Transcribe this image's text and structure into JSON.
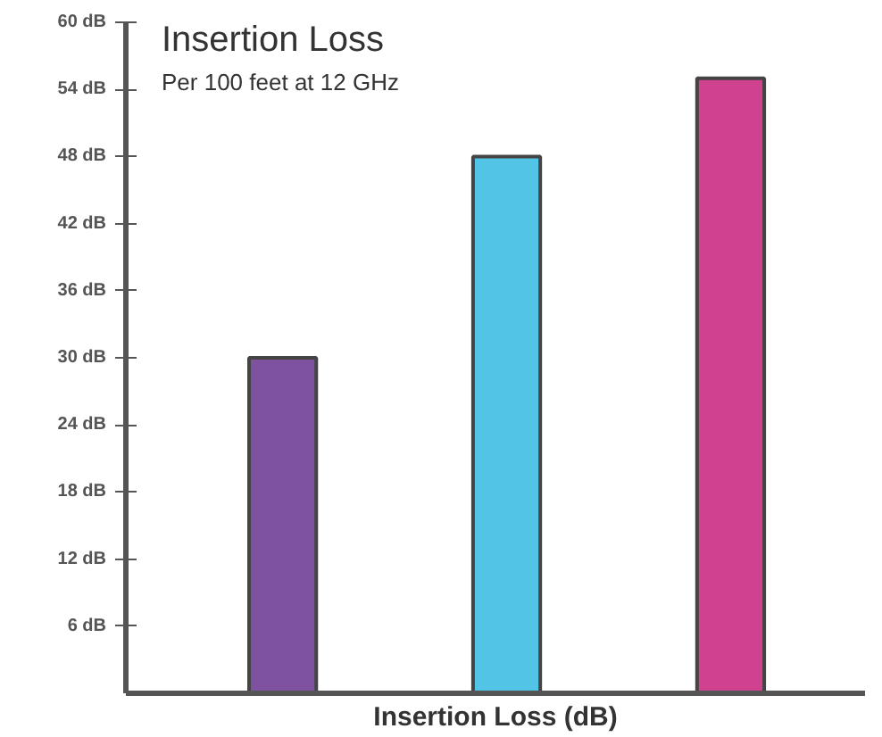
{
  "chart_data": {
    "type": "bar",
    "title": "Insertion Loss",
    "subtitle": "Per 100 feet at 12 GHz",
    "xlabel": "Insertion Loss (dB)",
    "categories": [
      null,
      null,
      null
    ],
    "values": [
      30,
      48,
      55
    ],
    "colors": [
      "#7f52a0",
      "#52c4e6",
      "#d0428f"
    ],
    "ylim": [
      0,
      60
    ],
    "yticks": [
      {
        "value": 6,
        "label": "6 dB"
      },
      {
        "value": 12,
        "label": "12 dB"
      },
      {
        "value": 18,
        "label": "18 dB"
      },
      {
        "value": 24,
        "label": "24 dB"
      },
      {
        "value": 30,
        "label": "30 dB"
      },
      {
        "value": 36,
        "label": "36 dB"
      },
      {
        "value": 42,
        "label": "42 dB"
      },
      {
        "value": 48,
        "label": "48 dB"
      },
      {
        "value": 54,
        "label": "54 dB"
      },
      {
        "value": 60,
        "label": "60 dB"
      }
    ],
    "grid": false
  }
}
